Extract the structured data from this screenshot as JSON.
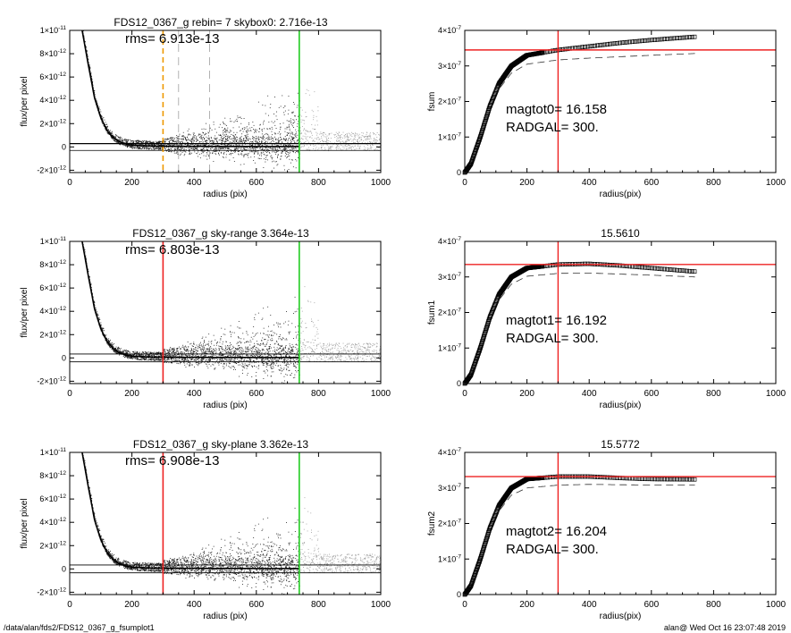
{
  "footer": {
    "path": "/data/alan/fds2/FDS12_0367_g_fsumplot1",
    "stamp": "alan@  Wed Oct 16 23:07:48 2019"
  },
  "colors": {
    "red": "#ee2222",
    "green": "#22cc22",
    "orange": "#ee9900",
    "gray": "#a0a0a0"
  },
  "chart_data": [
    {
      "type": "scatter",
      "title": "FDS12_0367_g rebin= 7    skybox0:  2.716e-13",
      "annotation": "rms= 6.913e-13",
      "xlabel": "radius (pix)",
      "ylabel": "flux/per pixel",
      "xlim": [
        0,
        1000
      ],
      "ylim": [
        -2.2e-12,
        1e-11
      ],
      "xticks": [
        "0",
        "200",
        "400",
        "600",
        "800",
        "1000"
      ],
      "yticks": [
        {
          "v": -2e-12,
          "m": "-2",
          "e": "-12"
        },
        {
          "v": 0,
          "m": "0",
          "e": ""
        },
        {
          "v": 2e-12,
          "m": "2",
          "e": "-12"
        },
        {
          "v": 4e-12,
          "m": "4",
          "e": "-12"
        },
        {
          "v": 6e-12,
          "m": "6",
          "e": "-12"
        },
        {
          "v": 8e-12,
          "m": "8",
          "e": "-12"
        },
        {
          "v": 1e-11,
          "m": "1",
          "e": "-11"
        }
      ],
      "profile": [
        [
          40,
          1e-11
        ],
        [
          60,
          7e-12
        ],
        [
          80,
          4.2e-12
        ],
        [
          100,
          2.5e-12
        ],
        [
          120,
          1.4e-12
        ],
        [
          140,
          8e-13
        ],
        [
          160,
          4.5e-13
        ],
        [
          180,
          2.5e-13
        ],
        [
          200,
          1.5e-13
        ],
        [
          250,
          8e-14
        ],
        [
          300,
          5e-14
        ],
        [
          740,
          3e-14
        ]
      ],
      "sky_lines": [
        3e-13,
        2.716e-13,
        -3e-13
      ],
      "markers": [
        {
          "x": 300,
          "color": "orange",
          "style": "dashed"
        },
        {
          "x": 350,
          "color": "gray",
          "style": "dashed"
        },
        {
          "x": 450,
          "color": "gray",
          "style": "dashed"
        },
        {
          "x": 738,
          "color": "green",
          "style": "solid"
        }
      ],
      "scatter_style": "rebin"
    },
    {
      "type": "line",
      "title": "",
      "annotation": "magtot0=  16.158",
      "annotation2": "RADGAL=    300.",
      "xlabel": "radius(pix)",
      "ylabel": "fsum",
      "xlim": [
        0,
        1000
      ],
      "ylim": [
        0,
        4e-07
      ],
      "xticks": [
        "0",
        "200",
        "400",
        "600",
        "800",
        "1000"
      ],
      "yticks": [
        {
          "v": 0,
          "m": "0",
          "e": ""
        },
        {
          "v": 1e-07,
          "m": "1",
          "e": "-7"
        },
        {
          "v": 2e-07,
          "m": "2",
          "e": "-7"
        },
        {
          "v": 3e-07,
          "m": "3",
          "e": "-7"
        },
        {
          "v": 4e-07,
          "m": "4",
          "e": "-7"
        }
      ],
      "growth": [
        [
          0,
          0
        ],
        [
          20,
          2.5e-08
        ],
        [
          50,
          1e-07
        ],
        [
          80,
          1.85e-07
        ],
        [
          110,
          2.5e-07
        ],
        [
          150,
          3e-07
        ],
        [
          200,
          3.3e-07
        ],
        [
          300,
          3.45e-07
        ],
        [
          400,
          3.55e-07
        ],
        [
          500,
          3.65e-07
        ],
        [
          600,
          3.73e-07
        ],
        [
          740,
          3.82e-07
        ]
      ],
      "dashed": [
        [
          0,
          0
        ],
        [
          20,
          2.3e-08
        ],
        [
          50,
          9e-08
        ],
        [
          80,
          1.7e-07
        ],
        [
          110,
          2.35e-07
        ],
        [
          150,
          2.8e-07
        ],
        [
          200,
          3.05e-07
        ],
        [
          300,
          3.17e-07
        ],
        [
          400,
          3.22e-07
        ],
        [
          500,
          3.26e-07
        ],
        [
          600,
          3.3e-07
        ],
        [
          740,
          3.35e-07
        ]
      ],
      "hline": 3.45e-07,
      "vline": 300
    },
    {
      "type": "scatter",
      "title": "FDS12_0367_g sky-range  3.364e-13",
      "annotation": "rms= 6.803e-13",
      "xlabel": "radius (pix)",
      "ylabel": "flux/per pixel",
      "xlim": [
        0,
        1000
      ],
      "ylim": [
        -2.2e-12,
        1e-11
      ],
      "xticks": [
        "0",
        "200",
        "400",
        "600",
        "800",
        "1000"
      ],
      "yticks": [
        {
          "v": -2e-12,
          "m": "-2",
          "e": "-12"
        },
        {
          "v": 0,
          "m": "0",
          "e": ""
        },
        {
          "v": 2e-12,
          "m": "2",
          "e": "-12"
        },
        {
          "v": 4e-12,
          "m": "4",
          "e": "-12"
        },
        {
          "v": 6e-12,
          "m": "6",
          "e": "-12"
        },
        {
          "v": 8e-12,
          "m": "8",
          "e": "-12"
        },
        {
          "v": 1e-11,
          "m": "1",
          "e": "-11"
        }
      ],
      "profile": [
        [
          40,
          1e-11
        ],
        [
          60,
          7e-12
        ],
        [
          80,
          4.2e-12
        ],
        [
          100,
          2.5e-12
        ],
        [
          120,
          1.4e-12
        ],
        [
          140,
          8e-13
        ],
        [
          160,
          4.5e-13
        ],
        [
          180,
          2.5e-13
        ],
        [
          200,
          1.5e-13
        ],
        [
          250,
          8e-14
        ],
        [
          300,
          5e-14
        ],
        [
          740,
          3e-14
        ]
      ],
      "sky_lines": [
        3.364e-13,
        -3.364e-13
      ],
      "markers": [
        {
          "x": 300,
          "color": "red",
          "style": "solid"
        },
        {
          "x": 738,
          "color": "green",
          "style": "solid"
        }
      ],
      "scatter_style": "plain"
    },
    {
      "type": "line",
      "title": "15.5610",
      "annotation": "magtot1=  16.192",
      "annotation2": "RADGAL=    300.",
      "xlabel": "radius(pix)",
      "ylabel": "fsum1",
      "xlim": [
        0,
        1000
      ],
      "ylim": [
        0,
        4e-07
      ],
      "xticks": [
        "0",
        "200",
        "400",
        "600",
        "800",
        "1000"
      ],
      "yticks": [
        {
          "v": 0,
          "m": "0",
          "e": ""
        },
        {
          "v": 1e-07,
          "m": "1",
          "e": "-7"
        },
        {
          "v": 2e-07,
          "m": "2",
          "e": "-7"
        },
        {
          "v": 3e-07,
          "m": "3",
          "e": "-7"
        },
        {
          "v": 4e-07,
          "m": "4",
          "e": "-7"
        }
      ],
      "growth": [
        [
          0,
          0
        ],
        [
          20,
          2.5e-08
        ],
        [
          50,
          1e-07
        ],
        [
          80,
          1.85e-07
        ],
        [
          110,
          2.5e-07
        ],
        [
          150,
          3e-07
        ],
        [
          200,
          3.25e-07
        ],
        [
          300,
          3.35e-07
        ],
        [
          400,
          3.37e-07
        ],
        [
          500,
          3.32e-07
        ],
        [
          600,
          3.25e-07
        ],
        [
          740,
          3.15e-07
        ]
      ],
      "dashed": [
        [
          0,
          0
        ],
        [
          20,
          2.3e-08
        ],
        [
          50,
          9e-08
        ],
        [
          80,
          1.7e-07
        ],
        [
          110,
          2.35e-07
        ],
        [
          150,
          2.8e-07
        ],
        [
          200,
          3.02e-07
        ],
        [
          300,
          3.1e-07
        ],
        [
          400,
          3.11e-07
        ],
        [
          500,
          3.08e-07
        ],
        [
          600,
          3.05e-07
        ],
        [
          740,
          3e-07
        ]
      ],
      "hline": 3.35e-07,
      "vline": 300
    },
    {
      "type": "scatter",
      "title": "FDS12_0367_g sky-plane  3.362e-13",
      "annotation": "rms= 6.908e-13",
      "xlabel": "radius (pix)",
      "ylabel": "flux/per pixel",
      "xlim": [
        0,
        1000
      ],
      "ylim": [
        -2.2e-12,
        1e-11
      ],
      "xticks": [
        "0",
        "200",
        "400",
        "600",
        "800",
        "1000"
      ],
      "yticks": [
        {
          "v": -2e-12,
          "m": "-2",
          "e": "-12"
        },
        {
          "v": 0,
          "m": "0",
          "e": ""
        },
        {
          "v": 2e-12,
          "m": "2",
          "e": "-12"
        },
        {
          "v": 4e-12,
          "m": "4",
          "e": "-12"
        },
        {
          "v": 6e-12,
          "m": "6",
          "e": "-12"
        },
        {
          "v": 8e-12,
          "m": "8",
          "e": "-12"
        },
        {
          "v": 1e-11,
          "m": "1",
          "e": "-11"
        }
      ],
      "profile": [
        [
          40,
          1e-11
        ],
        [
          60,
          7e-12
        ],
        [
          80,
          4.2e-12
        ],
        [
          100,
          2.5e-12
        ],
        [
          120,
          1.4e-12
        ],
        [
          140,
          8e-13
        ],
        [
          160,
          4.5e-13
        ],
        [
          180,
          2.5e-13
        ],
        [
          200,
          1.5e-13
        ],
        [
          250,
          8e-14
        ],
        [
          300,
          5e-14
        ],
        [
          740,
          3e-14
        ]
      ],
      "sky_lines": [
        3.362e-13,
        -3.362e-13
      ],
      "markers": [
        {
          "x": 300,
          "color": "red",
          "style": "solid"
        },
        {
          "x": 738,
          "color": "green",
          "style": "solid"
        }
      ],
      "scatter_style": "plain"
    },
    {
      "type": "line",
      "title": "15.5772",
      "annotation": "magtot2=  16.204",
      "annotation2": "RADGAL=    300.",
      "xlabel": "radius(pix)",
      "ylabel": "fsum2",
      "xlim": [
        0,
        1000
      ],
      "ylim": [
        0,
        4e-07
      ],
      "xticks": [
        "0",
        "200",
        "400",
        "600",
        "800",
        "1000"
      ],
      "yticks": [
        {
          "v": 0,
          "m": "0",
          "e": ""
        },
        {
          "v": 1e-07,
          "m": "1",
          "e": "-7"
        },
        {
          "v": 2e-07,
          "m": "2",
          "e": "-7"
        },
        {
          "v": 3e-07,
          "m": "3",
          "e": "-7"
        },
        {
          "v": 4e-07,
          "m": "4",
          "e": "-7"
        }
      ],
      "growth": [
        [
          0,
          0
        ],
        [
          20,
          2.5e-08
        ],
        [
          50,
          1e-07
        ],
        [
          80,
          1.85e-07
        ],
        [
          110,
          2.5e-07
        ],
        [
          150,
          3e-07
        ],
        [
          200,
          3.25e-07
        ],
        [
          300,
          3.32e-07
        ],
        [
          400,
          3.32e-07
        ],
        [
          500,
          3.28e-07
        ],
        [
          600,
          3.25e-07
        ],
        [
          740,
          3.24e-07
        ]
      ],
      "dashed": [
        [
          0,
          0
        ],
        [
          20,
          2.3e-08
        ],
        [
          50,
          9e-08
        ],
        [
          80,
          1.7e-07
        ],
        [
          110,
          2.35e-07
        ],
        [
          150,
          2.8e-07
        ],
        [
          200,
          3e-07
        ],
        [
          300,
          3.08e-07
        ],
        [
          400,
          3.1e-07
        ],
        [
          500,
          3.09e-07
        ],
        [
          600,
          3.08e-07
        ],
        [
          740,
          3.08e-07
        ]
      ],
      "hline": 3.32e-07,
      "vline": 300
    }
  ]
}
